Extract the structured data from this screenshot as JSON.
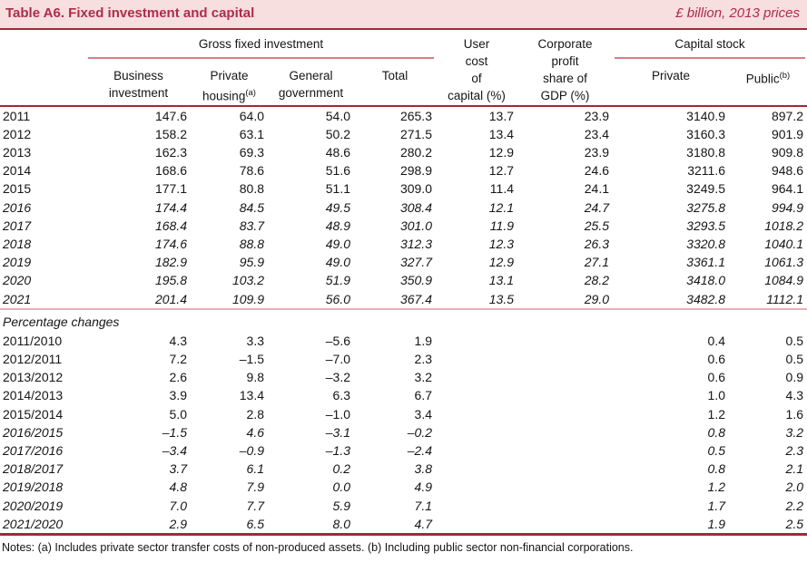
{
  "header": {
    "title": "Table A6. Fixed investment and capital",
    "units": "£ billion, 2013 prices"
  },
  "colors": {
    "band_bg": "#f7dfdf",
    "accent": "#b02b49",
    "rule_dark": "#9d2b38",
    "rule_light": "#dd7a87",
    "rule_divider": "#e9aeb4"
  },
  "columns": {
    "gfi_group": "Gross fixed investment",
    "capital_group": "Capital stock",
    "business_l1": "Business",
    "business_l2": "investment",
    "private_l1": "Private",
    "private_l2": "housing",
    "private_sup": "(a)",
    "general_l1": "General",
    "general_l2": "government",
    "total": "Total",
    "user_l1": "User",
    "user_l2": "cost",
    "user_l3": "of",
    "user_l4": "capital (%)",
    "corp_l1": "Corporate",
    "corp_l2": "profit",
    "corp_l3": "share of",
    "corp_l4": "GDP (%)",
    "cs_private": "Private",
    "cs_public": "Public",
    "cs_public_sup": "(b)"
  },
  "table": {
    "levels_rows": [
      {
        "label": "2011",
        "italic": false,
        "values": [
          "147.6",
          "64.0",
          "54.0",
          "265.3",
          "13.7",
          "23.9",
          "3140.9",
          "897.2"
        ]
      },
      {
        "label": "2012",
        "italic": false,
        "values": [
          "158.2",
          "63.1",
          "50.2",
          "271.5",
          "13.4",
          "23.4",
          "3160.3",
          "901.9"
        ]
      },
      {
        "label": "2013",
        "italic": false,
        "values": [
          "162.3",
          "69.3",
          "48.6",
          "280.2",
          "12.9",
          "23.9",
          "3180.8",
          "909.8"
        ]
      },
      {
        "label": "2014",
        "italic": false,
        "values": [
          "168.6",
          "78.6",
          "51.6",
          "298.9",
          "12.7",
          "24.6",
          "3211.6",
          "948.6"
        ]
      },
      {
        "label": "2015",
        "italic": false,
        "values": [
          "177.1",
          "80.8",
          "51.1",
          "309.0",
          "11.4",
          "24.1",
          "3249.5",
          "964.1"
        ]
      },
      {
        "label": "2016",
        "italic": true,
        "values": [
          "174.4",
          "84.5",
          "49.5",
          "308.4",
          "12.1",
          "24.7",
          "3275.8",
          "994.9"
        ]
      },
      {
        "label": "2017",
        "italic": true,
        "values": [
          "168.4",
          "83.7",
          "48.9",
          "301.0",
          "11.9",
          "25.5",
          "3293.5",
          "1018.2"
        ]
      },
      {
        "label": "2018",
        "italic": true,
        "values": [
          "174.6",
          "88.8",
          "49.0",
          "312.3",
          "12.3",
          "26.3",
          "3320.8",
          "1040.1"
        ]
      },
      {
        "label": "2019",
        "italic": true,
        "values": [
          "182.9",
          "95.9",
          "49.0",
          "327.7",
          "12.9",
          "27.1",
          "3361.1",
          "1061.3"
        ]
      },
      {
        "label": "2020",
        "italic": true,
        "values": [
          "195.8",
          "103.2",
          "51.9",
          "350.9",
          "13.1",
          "28.2",
          "3418.0",
          "1084.9"
        ]
      },
      {
        "label": "2021",
        "italic": true,
        "values": [
          "201.4",
          "109.9",
          "56.0",
          "367.4",
          "13.5",
          "29.0",
          "3482.8",
          "1112.1"
        ]
      }
    ],
    "pct_label": "Percentage changes",
    "pct_rows": [
      {
        "label": "2011/2010",
        "italic": false,
        "values": [
          "4.3",
          "3.3",
          "–5.6",
          "1.9",
          "",
          "",
          "0.4",
          "0.5"
        ]
      },
      {
        "label": "2012/2011",
        "italic": false,
        "values": [
          "7.2",
          "–1.5",
          "–7.0",
          "2.3",
          "",
          "",
          "0.6",
          "0.5"
        ]
      },
      {
        "label": "2013/2012",
        "italic": false,
        "values": [
          "2.6",
          "9.8",
          "–3.2",
          "3.2",
          "",
          "",
          "0.6",
          "0.9"
        ]
      },
      {
        "label": "2014/2013",
        "italic": false,
        "values": [
          "3.9",
          "13.4",
          "6.3",
          "6.7",
          "",
          "",
          "1.0",
          "4.3"
        ]
      },
      {
        "label": "2015/2014",
        "italic": false,
        "values": [
          "5.0",
          "2.8",
          "–1.0",
          "3.4",
          "",
          "",
          "1.2",
          "1.6"
        ]
      },
      {
        "label": "2016/2015",
        "italic": true,
        "values": [
          "–1.5",
          "4.6",
          "–3.1",
          "–0.2",
          "",
          "",
          "0.8",
          "3.2"
        ]
      },
      {
        "label": "2017/2016",
        "italic": true,
        "values": [
          "–3.4",
          "–0.9",
          "–1.3",
          "–2.4",
          "",
          "",
          "0.5",
          "2.3"
        ]
      },
      {
        "label": "2018/2017",
        "italic": true,
        "values": [
          "3.7",
          "6.1",
          "0.2",
          "3.8",
          "",
          "",
          "0.8",
          "2.1"
        ]
      },
      {
        "label": "2019/2018",
        "italic": true,
        "values": [
          "4.8",
          "7.9",
          "0.0",
          "4.9",
          "",
          "",
          "1.2",
          "2.0"
        ]
      },
      {
        "label": "2020/2019",
        "italic": true,
        "values": [
          "7.0",
          "7.7",
          "5.9",
          "7.1",
          "",
          "",
          "1.7",
          "2.2"
        ]
      },
      {
        "label": "2021/2020",
        "italic": true,
        "values": [
          "2.9",
          "6.5",
          "8.0",
          "4.7",
          "",
          "",
          "1.9",
          "2.5"
        ]
      }
    ]
  },
  "notes": "Notes: (a) Includes private sector transfer costs of non-produced assets. (b) Including public sector non-financial corporations."
}
